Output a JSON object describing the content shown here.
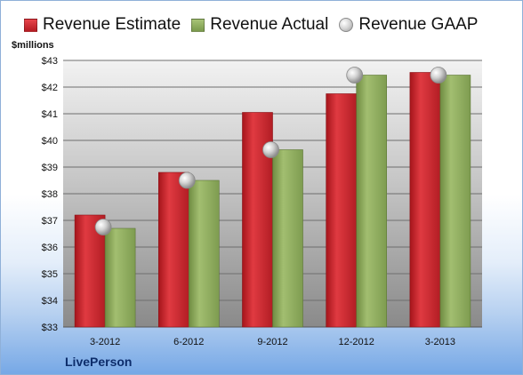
{
  "unit_label": "$millions",
  "company": "LivePerson",
  "colors": {
    "estimate": "#cc2229",
    "actual": "#8aa65a",
    "gaap": "#c0c0c0"
  },
  "chart_data": {
    "type": "bar",
    "categories": [
      "3-2012",
      "6-2012",
      "9-2012",
      "12-2012",
      "3-2013"
    ],
    "series": [
      {
        "name": "Revenue Estimate",
        "values": [
          37.2,
          38.8,
          41.05,
          41.75,
          42.55
        ]
      },
      {
        "name": "Revenue Actual",
        "values": [
          36.7,
          38.5,
          39.65,
          42.45,
          42.45
        ]
      },
      {
        "name": "Revenue GAAP",
        "values": [
          36.75,
          38.5,
          39.65,
          42.45,
          42.45
        ],
        "marker": "circle"
      }
    ],
    "ylim": [
      33,
      43
    ],
    "yticks": [
      "$33",
      "$34",
      "$35",
      "$36",
      "$37",
      "$38",
      "$39",
      "$40",
      "$41",
      "$42",
      "$43"
    ],
    "grid": true,
    "legend_position": "top"
  }
}
